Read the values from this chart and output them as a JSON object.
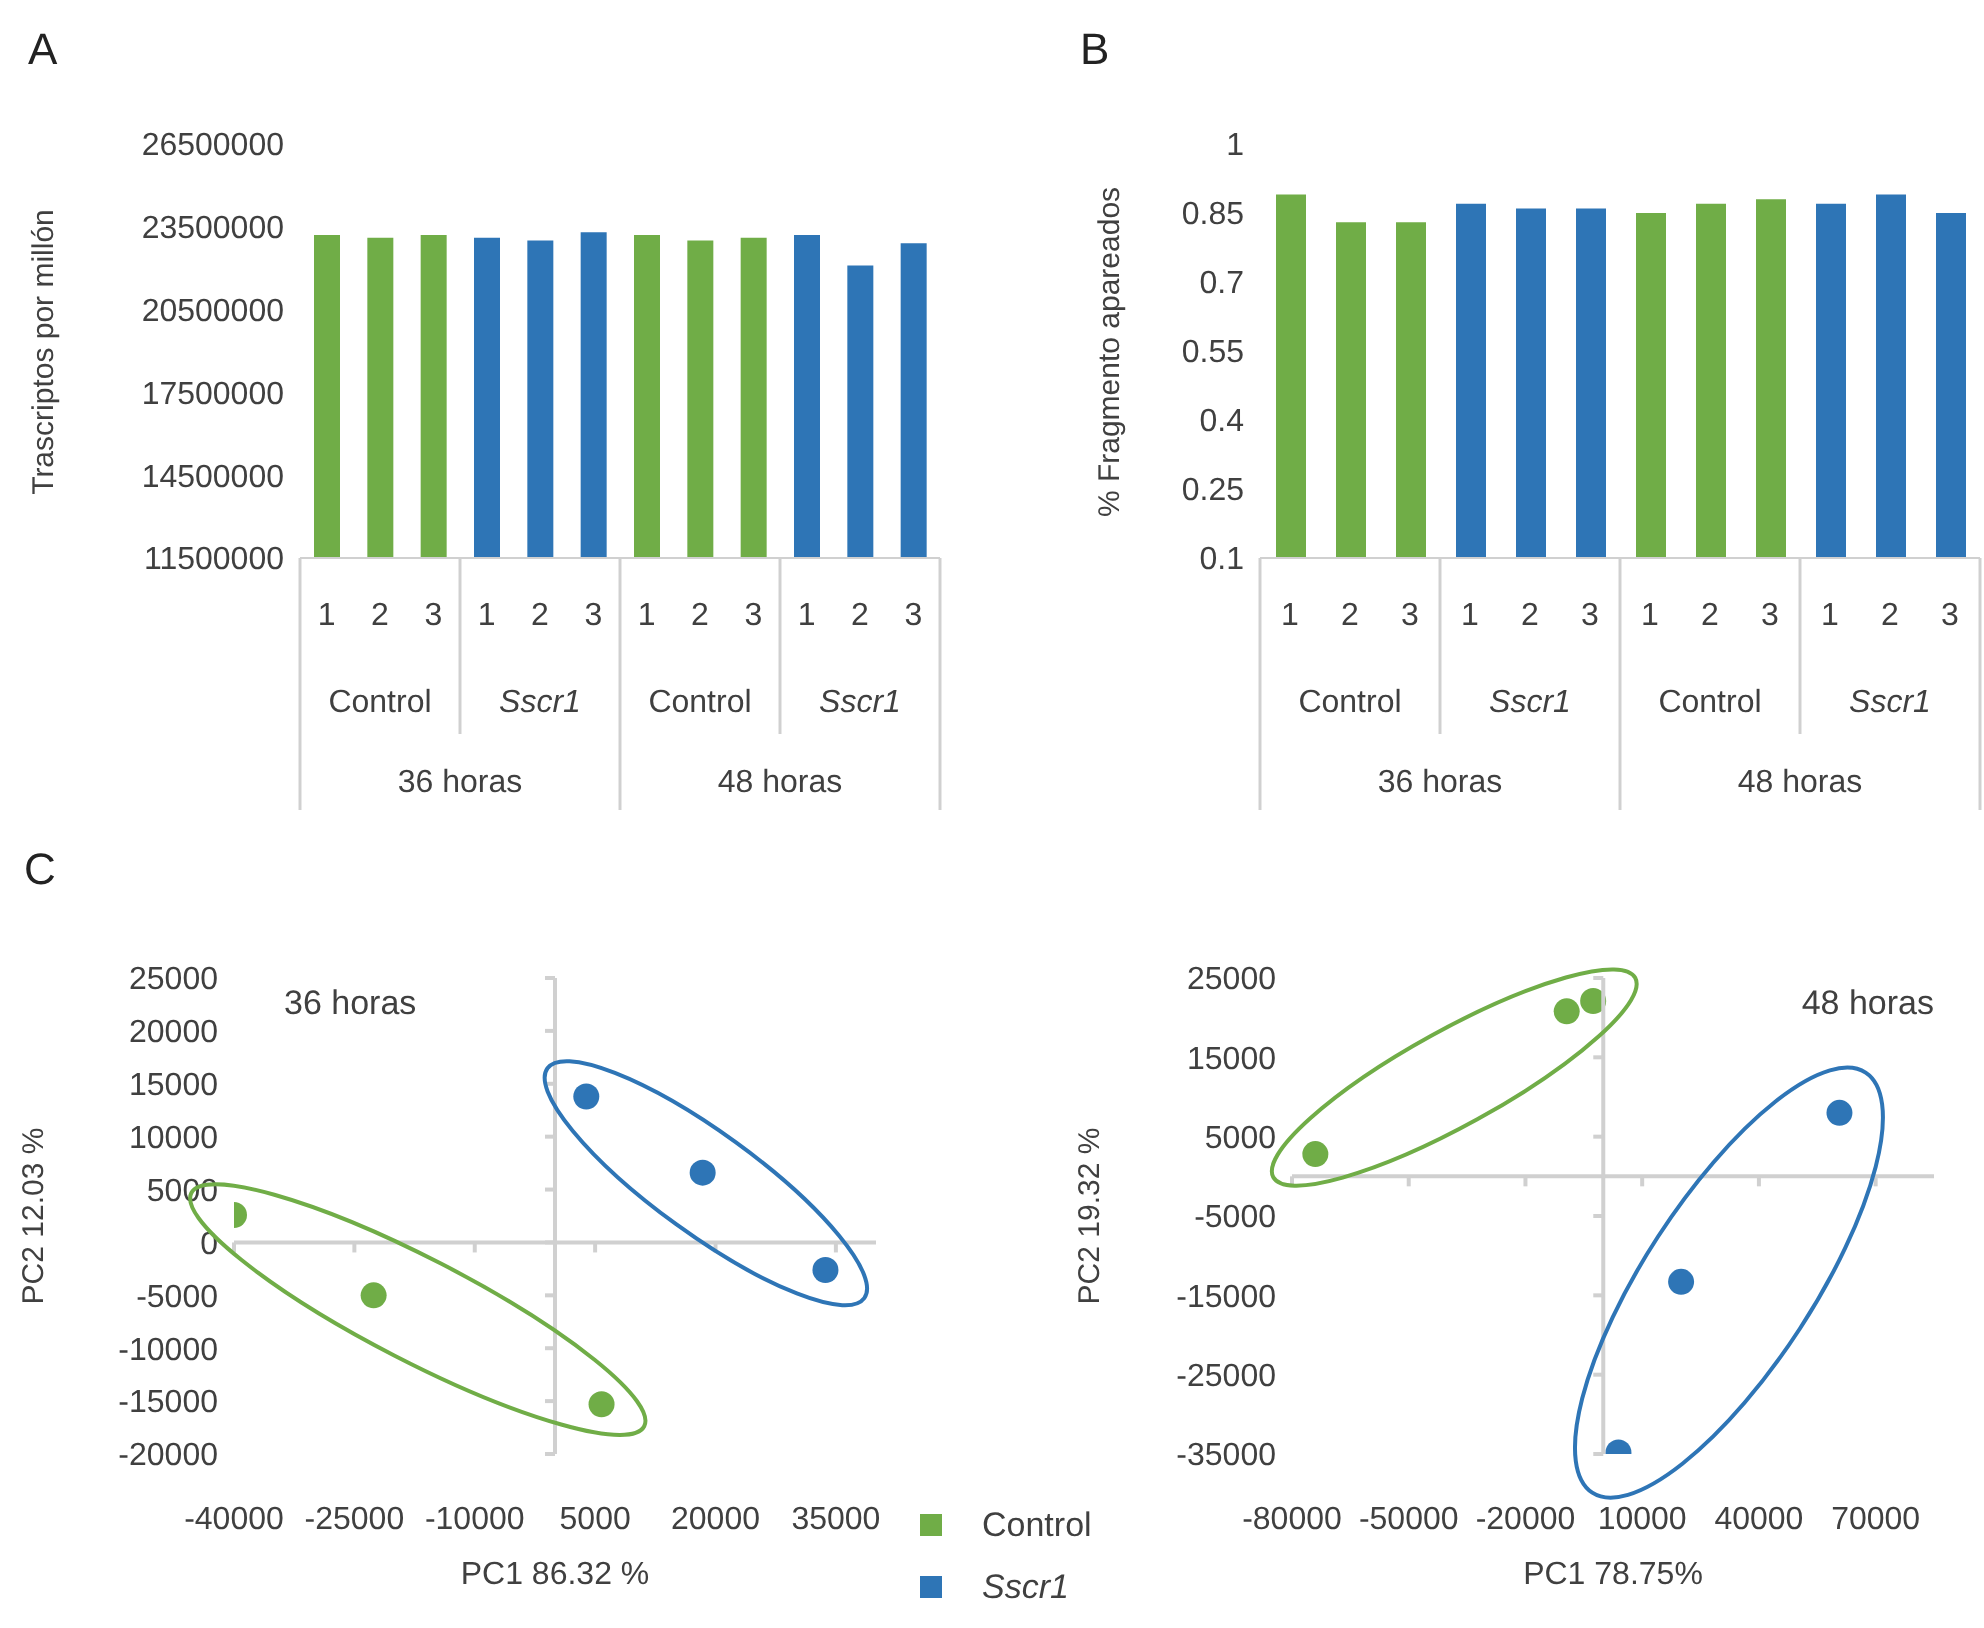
{
  "chart_data": [
    {
      "type": "bar",
      "title": "A",
      "ylabel": "Trascriptos por millón",
      "categories": [
        "1",
        "2",
        "3",
        "1",
        "2",
        "3",
        "1",
        "2",
        "3",
        "1",
        "2",
        "3"
      ],
      "values": [
        23200000,
        23100000,
        23200000,
        23100000,
        23000000,
        23300000,
        23200000,
        23000000,
        23100000,
        23200000,
        22100000,
        22900000
      ],
      "colors": [
        "#70ad47",
        "#70ad47",
        "#70ad47",
        "#2e75b6",
        "#2e75b6",
        "#2e75b6",
        "#70ad47",
        "#70ad47",
        "#70ad47",
        "#2e75b6",
        "#2e75b6",
        "#2e75b6"
      ],
      "ylim": [
        11500000,
        26500000
      ],
      "yticks": [
        11500000,
        14500000,
        17500000,
        20500000,
        23500000,
        26500000
      ],
      "annotations": [
        "Control",
        "Sscr1",
        "Control",
        "Sscr1",
        "36 horas",
        "48 horas"
      ]
    },
    {
      "type": "bar",
      "title": "B",
      "ylabel": "% Fragmento apareados",
      "categories": [
        "1",
        "2",
        "3",
        "1",
        "2",
        "3",
        "1",
        "2",
        "3",
        "1",
        "2",
        "3"
      ],
      "values": [
        0.89,
        0.83,
        0.83,
        0.87,
        0.86,
        0.86,
        0.85,
        0.87,
        0.88,
        0.87,
        0.89,
        0.85
      ],
      "colors": [
        "#70ad47",
        "#70ad47",
        "#70ad47",
        "#2e75b6",
        "#2e75b6",
        "#2e75b6",
        "#70ad47",
        "#70ad47",
        "#70ad47",
        "#2e75b6",
        "#2e75b6",
        "#2e75b6"
      ],
      "ylim": [
        0.1,
        1
      ],
      "yticks": [
        0.1,
        0.25,
        0.4,
        0.55,
        0.7,
        0.85,
        1
      ],
      "annotations": [
        "Control",
        "Sscr1",
        "Control",
        "Sscr1",
        "36 horas",
        "48 horas"
      ]
    },
    {
      "type": "scatter",
      "title": "C",
      "xlabel": "PC1 86.32 %",
      "ylabel": "PC2 12.03 %",
      "annotations": [
        "36 horas"
      ],
      "series": [
        {
          "name": "Control",
          "color": "#70ad47",
          "x": [
            -40000,
            -22600,
            5800
          ],
          "values": [
            2600,
            -5000,
            -15300
          ]
        },
        {
          "name": "Sscr1",
          "color": "#2e75b6",
          "x": [
            3900,
            18400,
            33700
          ],
          "values": [
            13800,
            6600,
            -2600
          ]
        }
      ],
      "xlim": [
        -40000,
        40000
      ],
      "xticks": [
        -40000,
        -25000,
        -10000,
        5000,
        20000,
        35000
      ],
      "ylim": [
        -20000,
        25000
      ],
      "yticks": [
        -20000,
        -15000,
        -10000,
        -5000,
        0,
        5000,
        10000,
        15000,
        20000,
        25000
      ],
      "marker": "circle",
      "legend": "bottom right"
    },
    {
      "type": "scatter",
      "xlabel": "PC1 78.75%",
      "ylabel": "PC2 19.32 %",
      "annotations": [
        "48 horas"
      ],
      "series": [
        {
          "color": "#70ad47",
          "x": [
            -74000,
            -9400,
            -2600
          ],
          "values": [
            2800,
            20800,
            22100
          ]
        },
        {
          "color": "#2e75b6",
          "x": [
            60700,
            20000,
            3900
          ],
          "values": [
            8000,
            -13300,
            -34800
          ]
        }
      ],
      "xlim": [
        -80000,
        85000
      ],
      "xticks": [
        -80000,
        -50000,
        -20000,
        10000,
        40000,
        70000
      ],
      "ylim": [
        -35000,
        25000
      ],
      "yticks": [
        -35000,
        -25000,
        -15000,
        -5000,
        5000,
        15000,
        25000
      ],
      "marker": "circle"
    }
  ]
}
